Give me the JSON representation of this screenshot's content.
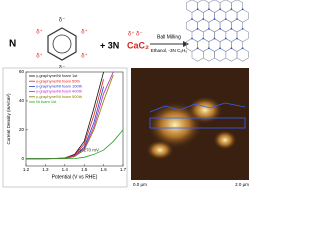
{
  "reaction": {
    "reactant_count": "N",
    "ring_charges": [
      "δ⁻",
      "δ⁺",
      "δ⁺",
      "δ⁻",
      "δ⁺",
      "δ⁺"
    ],
    "plus": "+ 3N",
    "reagent": "CaC₂",
    "reagent_charges": "δ⁺ δ⁻",
    "condition_top": "Ball Milling",
    "condition_bottom": "Ethanol, -3N C₆H₆"
  },
  "chart_data": {
    "type": "line",
    "x_label": "Potential (V vs RHE)",
    "y_label": "Current Density (mA/cm²)",
    "annotation": "η=270 mV",
    "x": [
      1.2,
      1.3,
      1.4,
      1.45,
      1.5,
      1.55,
      1.6,
      1.65,
      1.7
    ],
    "xlim": [
      1.2,
      1.7
    ],
    "xticks": [
      1.2,
      1.3,
      1.4,
      1.5,
      1.6,
      1.7
    ],
    "ylim": [
      -5,
      60
    ],
    "yticks": [
      0,
      20,
      40,
      60
    ],
    "legend": "upper left",
    "series": [
      {
        "name": "γ-graphyne/Ni foam 1st",
        "color": "#111111",
        "values": [
          0,
          0,
          0.5,
          3,
          12,
          35,
          60,
          null,
          null
        ]
      },
      {
        "name": "γ-graphyne/Ni foam 50th",
        "color": "#e0201c",
        "values": [
          0,
          0,
          0.4,
          2.5,
          10,
          30,
          55,
          null,
          null
        ]
      },
      {
        "name": "γ-graphyne/Ni foam 100th",
        "color": "#2040d0",
        "values": [
          0,
          0,
          0.3,
          2,
          8,
          25,
          50,
          null,
          null
        ]
      },
      {
        "name": "γ-graphyne/Ni foam 400th",
        "color": "#c020c0",
        "values": [
          0,
          0,
          0.3,
          2,
          7,
          22,
          45,
          60,
          null
        ]
      },
      {
        "name": "γ-graphyne/Ni foam 500th",
        "color": "#808000",
        "values": [
          0,
          0,
          0.2,
          1.5,
          6,
          20,
          40,
          58,
          null
        ]
      },
      {
        "name": "Ni foam 1st",
        "color": "#20a020",
        "values": [
          0,
          0,
          0,
          0.2,
          1,
          3,
          6,
          12,
          20
        ]
      }
    ]
  },
  "afm": {
    "x_start": "0.0 μm",
    "x_end": "2.0 μm"
  }
}
